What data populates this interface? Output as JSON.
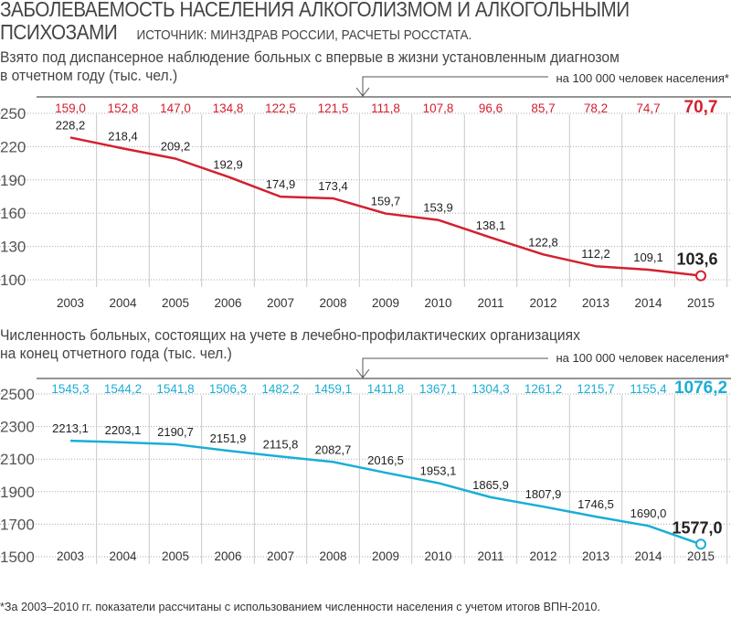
{
  "title": "ЗАБОЛЕВАЕМОСТЬ НАСЕЛЕНИЯ АЛКОГОЛИЗМОМ И АЛКОГОЛЬНЫМИ ПСИХОЗАМИ",
  "title_line1": "ЗАБОЛЕВАЕМОСТЬ НАСЕЛЕНИЯ АЛКОГОЛИЗМОМ И АЛКОГОЛЬНЫМИ",
  "title_line2": "ПСИХОЗАМИ",
  "source": "ИСТОЧНИК: МИНЗДРАВ РОССИИ, РАСЧЕТЫ РОССТАТА.",
  "footnote": "*За 2003–2010 гг. показатели рассчитаны с использованием численности населения с учетом итогов ВПН-2010.",
  "colors": {
    "chart1": "#d3202f",
    "chart2": "#1aaed6"
  },
  "chart_data": [
    {
      "type": "line",
      "title_line1": "Взято под диспансерное наблюдение больных с впервые в жизни установленным диагнозом",
      "title_line2": "в отчетном году (тыс. чел.)",
      "per100k_label": "на 100 000 человек населения*",
      "categories": [
        "2003",
        "2004",
        "2005",
        "2006",
        "2007",
        "2008",
        "2009",
        "2010",
        "2011",
        "2012",
        "2013",
        "2014",
        "2015"
      ],
      "values": [
        228.2,
        218.4,
        209.2,
        192.9,
        174.9,
        173.4,
        159.7,
        153.9,
        138.1,
        122.8,
        112.2,
        109.1,
        103.6
      ],
      "labels": [
        "228,2",
        "218,4",
        "209,2",
        "192,9",
        "174,9",
        "173,4",
        "159,7",
        "153,9",
        "138,1",
        "122,8",
        "112,2",
        "109,1",
        "103,6"
      ],
      "per100k": [
        "159,0",
        "152,8",
        "147,0",
        "134,8",
        "122,5",
        "121,5",
        "111,8",
        "107,8",
        "96,6",
        "85,7",
        "78,2",
        "74,7",
        "70,7"
      ],
      "yticks": [
        "250",
        "220",
        "190",
        "160",
        "130",
        "100"
      ],
      "ylim": [
        100,
        250
      ],
      "grid": true
    },
    {
      "type": "line",
      "title_line1": "Численность больных, состоящих на учете в лечебно-профилактических организациях",
      "title_line2": "на конец отчетного года (тыс. чел.)",
      "per100k_label": "на 100 000 человек населения*",
      "categories": [
        "2003",
        "2004",
        "2005",
        "2006",
        "2007",
        "2008",
        "2009",
        "2010",
        "2011",
        "2012",
        "2013",
        "2014",
        "2015"
      ],
      "values": [
        2213.1,
        2203.1,
        2190.7,
        2151.9,
        2115.8,
        2082.7,
        2016.5,
        1953.1,
        1865.9,
        1807.9,
        1746.5,
        1690.0,
        1577.0
      ],
      "labels": [
        "2213,1",
        "2203,1",
        "2190,7",
        "2151,9",
        "2115,8",
        "2082,7",
        "2016,5",
        "1953,1",
        "1865,9",
        "1807,9",
        "1746,5",
        "1690,0",
        "1577,0"
      ],
      "per100k": [
        "1545,3",
        "1544,2",
        "1541,8",
        "1506,3",
        "1482,2",
        "1459,1",
        "1411,8",
        "1367,1",
        "1304,3",
        "1261,2",
        "1215,7",
        "1155,4",
        "1076,2"
      ],
      "yticks": [
        "2500",
        "2300",
        "2100",
        "1900",
        "1700",
        "1500"
      ],
      "ylim": [
        1500,
        2500
      ],
      "grid": true
    }
  ]
}
